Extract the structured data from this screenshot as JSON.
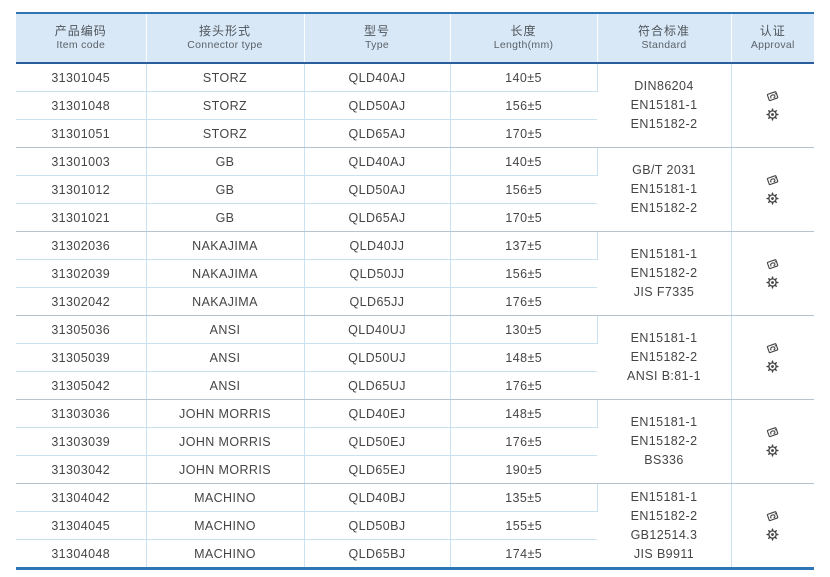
{
  "table": {
    "columns": [
      {
        "zh": "产品编码",
        "en": "Item code"
      },
      {
        "zh": "接头形式",
        "en": "Connector type"
      },
      {
        "zh": "型号",
        "en": "Type"
      },
      {
        "zh": "长度",
        "en": "Length(mm)"
      },
      {
        "zh": "符合标准",
        "en": "Standard"
      },
      {
        "zh": "认证",
        "en": "Approval"
      }
    ],
    "groups": [
      {
        "rows": [
          {
            "item_code": "31301045",
            "connector_type": "STORZ",
            "type": "QLD40AJ",
            "length": "140±5"
          },
          {
            "item_code": "31301048",
            "connector_type": "STORZ",
            "type": "QLD50AJ",
            "length": "156±5"
          },
          {
            "item_code": "31301051",
            "connector_type": "STORZ",
            "type": "QLD65AJ",
            "length": "170±5"
          }
        ],
        "standards": [
          "DIN86204",
          "EN15181-1",
          "EN15182-2"
        ],
        "approval_icons": [
          "certificate-stamp-icon",
          "gear-badge-icon"
        ]
      },
      {
        "rows": [
          {
            "item_code": "31301003",
            "connector_type": "GB",
            "type": "QLD40AJ",
            "length": "140±5"
          },
          {
            "item_code": "31301012",
            "connector_type": "GB",
            "type": "QLD50AJ",
            "length": "156±5"
          },
          {
            "item_code": "31301021",
            "connector_type": "GB",
            "type": "QLD65AJ",
            "length": "170±5"
          }
        ],
        "standards": [
          "GB/T 2031",
          "EN15181-1",
          "EN15182-2"
        ],
        "approval_icons": [
          "certificate-stamp-icon",
          "gear-badge-icon"
        ]
      },
      {
        "rows": [
          {
            "item_code": "31302036",
            "connector_type": "NAKAJIMA",
            "type": "QLD40JJ",
            "length": "137±5"
          },
          {
            "item_code": "31302039",
            "connector_type": "NAKAJIMA",
            "type": "QLD50JJ",
            "length": "156±5"
          },
          {
            "item_code": "31302042",
            "connector_type": "NAKAJIMA",
            "type": "QLD65JJ",
            "length": "176±5"
          }
        ],
        "standards": [
          "EN15181-1",
          "EN15182-2",
          "JIS F7335"
        ],
        "approval_icons": [
          "certificate-stamp-icon",
          "gear-badge-icon"
        ]
      },
      {
        "rows": [
          {
            "item_code": "31305036",
            "connector_type": "ANSI",
            "type": "QLD40UJ",
            "length": "130±5"
          },
          {
            "item_code": "31305039",
            "connector_type": "ANSI",
            "type": "QLD50UJ",
            "length": "148±5"
          },
          {
            "item_code": "31305042",
            "connector_type": "ANSI",
            "type": "QLD65UJ",
            "length": "176±5"
          }
        ],
        "standards": [
          "EN15181-1",
          "EN15182-2",
          "ANSI B:81-1"
        ],
        "approval_icons": [
          "certificate-stamp-icon",
          "gear-badge-icon"
        ]
      },
      {
        "rows": [
          {
            "item_code": "31303036",
            "connector_type": "JOHN MORRIS",
            "type": "QLD40EJ",
            "length": "148±5"
          },
          {
            "item_code": "31303039",
            "connector_type": "JOHN MORRIS",
            "type": "QLD50EJ",
            "length": "176±5"
          },
          {
            "item_code": "31303042",
            "connector_type": "JOHN MORRIS",
            "type": "QLD65EJ",
            "length": "190±5"
          }
        ],
        "standards": [
          "EN15181-1",
          "EN15182-2",
          "BS336"
        ],
        "approval_icons": [
          "certificate-stamp-icon",
          "gear-badge-icon"
        ]
      },
      {
        "rows": [
          {
            "item_code": "31304042",
            "connector_type": "MACHINO",
            "type": "QLD40BJ",
            "length": "135±5"
          },
          {
            "item_code": "31304045",
            "connector_type": "MACHINO",
            "type": "QLD50BJ",
            "length": "155±5"
          },
          {
            "item_code": "31304048",
            "connector_type": "MACHINO",
            "type": "QLD65BJ",
            "length": "174±5"
          }
        ],
        "standards": [
          "EN15181-1",
          "EN15182-2",
          "GB12514.3",
          "JIS B9911"
        ],
        "approval_icons": [
          "certificate-stamp-icon",
          "gear-badge-icon"
        ]
      }
    ],
    "colors": {
      "accent_blue": "#2e75b6",
      "header_rule_blue": "#2a5d9e",
      "header_bg": "#d9e8f6",
      "row_line": "#c9e2f2",
      "group_line": "#b5c4ce",
      "text": "#454545",
      "icon": "#444444"
    }
  }
}
